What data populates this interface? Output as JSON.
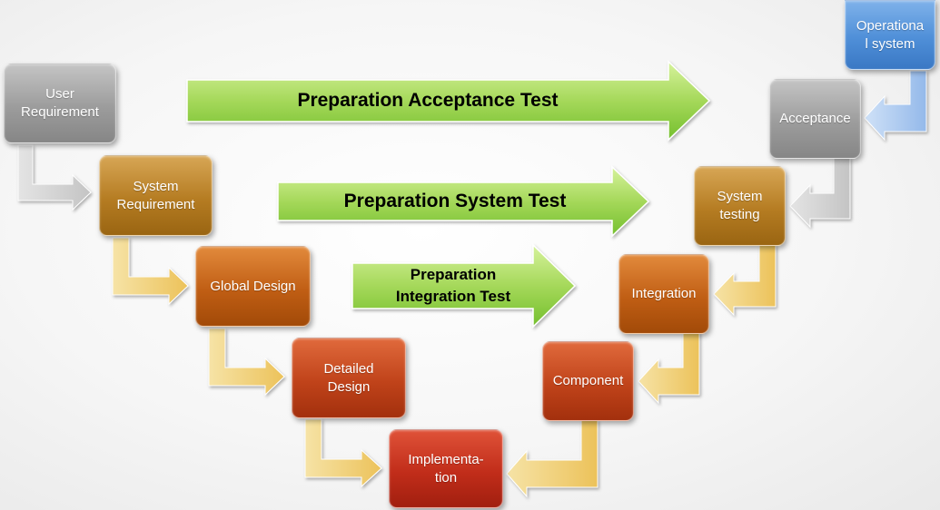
{
  "left_boxes": [
    {
      "id": "user-requirement",
      "label": "User\nRequirement",
      "color": "gray"
    },
    {
      "id": "system-requirement",
      "label": "System\nRequirement",
      "color": "gold"
    },
    {
      "id": "global-design",
      "label": "Global Design",
      "color": "orange"
    },
    {
      "id": "detailed-design",
      "label": "Detailed\nDesign",
      "color": "red"
    },
    {
      "id": "implementation",
      "label": "Implementa-\ntion",
      "color": "darkred"
    }
  ],
  "right_boxes": [
    {
      "id": "component",
      "label": "Component",
      "color": "red"
    },
    {
      "id": "integration",
      "label": "Integration",
      "color": "orange"
    },
    {
      "id": "system-testing",
      "label": "System\ntesting",
      "color": "gold"
    },
    {
      "id": "acceptance",
      "label": "Acceptance",
      "color": "gray"
    },
    {
      "id": "operational-system",
      "label": "Operationa\nl system",
      "color": "blue"
    }
  ],
  "arrows": [
    {
      "id": "preparation-acceptance-test",
      "label": "Preparation Acceptance Test"
    },
    {
      "id": "preparation-system-test",
      "label": "Preparation System Test"
    },
    {
      "id": "preparation-integration-test",
      "label": "Preparation\nIntegration Test"
    }
  ],
  "colors": {
    "green_arrow_light": "#c8ec8a",
    "green_arrow_dark": "#6fbd2a",
    "connector_gray": "#d0d0d0",
    "connector_gold": "#f2d27a",
    "connector_blue": "#a9c8ef"
  }
}
